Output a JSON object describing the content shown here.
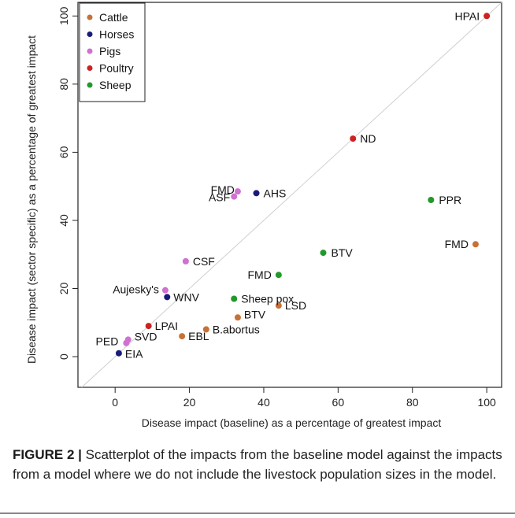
{
  "chart_data": {
    "type": "scatter",
    "xlabel": "Disease impact (baseline) as a percentage of greatest impact",
    "ylabel": "Disease impact (sector specific) as a percentage of greatest impact",
    "xlim": [
      -10,
      104
    ],
    "ylim": [
      -9,
      104
    ],
    "x_ticks": [
      "0",
      "20",
      "40",
      "60",
      "80",
      "100"
    ],
    "y_ticks": [
      "0",
      "20",
      "40",
      "60",
      "80",
      "100"
    ],
    "grid": false,
    "diagonal_reference_line": true,
    "legend_position": "top-left",
    "series": [
      {
        "name": "Cattle",
        "color": "#c87137",
        "points": [
          {
            "label": "FMD",
            "x": 97,
            "y": 33
          },
          {
            "label": "LSD",
            "x": 44,
            "y": 15
          },
          {
            "label": "BTV",
            "x": 33,
            "y": 11.5
          },
          {
            "label": "B.abortus",
            "x": 24.5,
            "y": 8
          },
          {
            "label": "EBL",
            "x": 18,
            "y": 6
          }
        ]
      },
      {
        "name": "Horses",
        "color": "#1a1a7a",
        "points": [
          {
            "label": "AHS",
            "x": 38,
            "y": 48
          },
          {
            "label": "WNV",
            "x": 14,
            "y": 17.5
          },
          {
            "label": "EIA",
            "x": 1,
            "y": 1
          }
        ]
      },
      {
        "name": "Pigs",
        "color": "#d070d0",
        "points": [
          {
            "label": "FMD",
            "x": 33,
            "y": 48.5
          },
          {
            "label": "ASF",
            "x": 32,
            "y": 47
          },
          {
            "label": "CSF",
            "x": 19,
            "y": 28
          },
          {
            "label": "Aujesky's",
            "x": 13.5,
            "y": 19.5
          },
          {
            "label": "SVD",
            "x": 3.5,
            "y": 5
          },
          {
            "label": "PED",
            "x": 3,
            "y": 4
          }
        ]
      },
      {
        "name": "Poultry",
        "color": "#cc2222",
        "points": [
          {
            "label": "HPAI",
            "x": 100,
            "y": 100
          },
          {
            "label": "ND",
            "x": 64,
            "y": 64
          },
          {
            "label": "LPAI",
            "x": 9,
            "y": 9
          }
        ]
      },
      {
        "name": "Sheep",
        "color": "#22992a",
        "points": [
          {
            "label": "PPR",
            "x": 85,
            "y": 46
          },
          {
            "label": "BTV",
            "x": 56,
            "y": 30.5
          },
          {
            "label": "FMD",
            "x": 44,
            "y": 24
          },
          {
            "label": "Sheep pox",
            "x": 32,
            "y": 17
          }
        ]
      }
    ]
  },
  "caption": {
    "label": "FIGURE 2 |",
    "text": " Scatterplot of the impacts from the baseline model against the impacts from a model where we do not include the livestock population sizes in the model."
  }
}
